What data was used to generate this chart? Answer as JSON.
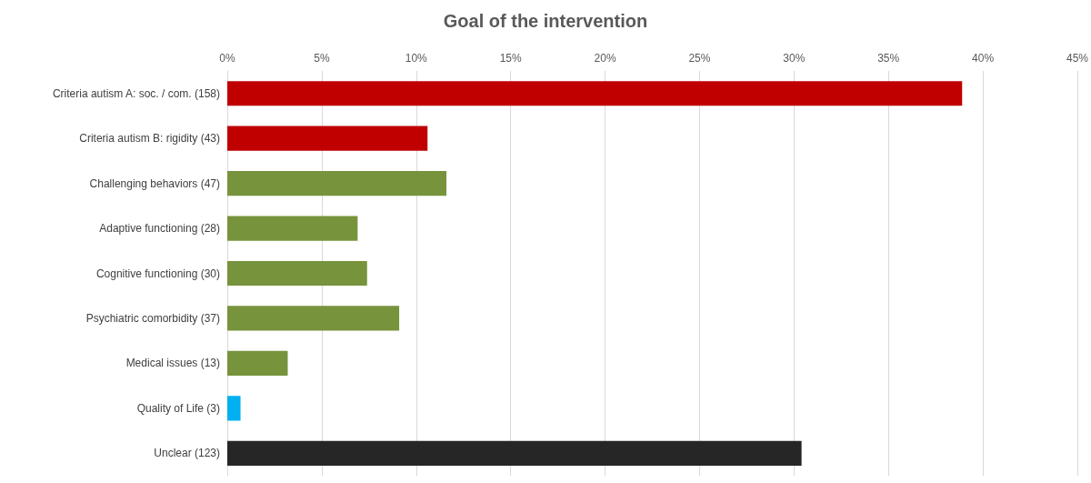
{
  "chart_data": {
    "type": "bar",
    "orientation": "horizontal",
    "title": "Goal of the intervention",
    "categories": [
      "Criteria autism A: soc. / com. (158)",
      "Criteria autism B: rigidity (43)",
      "Challenging behaviors (47)",
      "Adaptive functioning (28)",
      "Cognitive functioning (30)",
      "Psychiatric comorbidity (37)",
      "Medical issues (13)",
      "Quality of Life (3)",
      "Unclear (123)"
    ],
    "values": [
      38.9,
      10.6,
      11.6,
      6.9,
      7.4,
      9.1,
      3.2,
      0.7,
      30.4
    ],
    "colors": [
      "#c00000",
      "#c00000",
      "#77933c",
      "#77933c",
      "#77933c",
      "#77933c",
      "#77933c",
      "#00b0f0",
      "#262626"
    ],
    "xlim": [
      0,
      45
    ],
    "xticks": [
      {
        "value": 0,
        "label": "0%"
      },
      {
        "value": 5,
        "label": "5%"
      },
      {
        "value": 10,
        "label": "10%"
      },
      {
        "value": 15,
        "label": "15%"
      },
      {
        "value": 20,
        "label": "20%"
      },
      {
        "value": 25,
        "label": "25%"
      },
      {
        "value": 30,
        "label": "30%"
      },
      {
        "value": 35,
        "label": "35%"
      },
      {
        "value": 40,
        "label": "40%"
      },
      {
        "value": 45,
        "label": "45%"
      }
    ],
    "grid": "x"
  }
}
